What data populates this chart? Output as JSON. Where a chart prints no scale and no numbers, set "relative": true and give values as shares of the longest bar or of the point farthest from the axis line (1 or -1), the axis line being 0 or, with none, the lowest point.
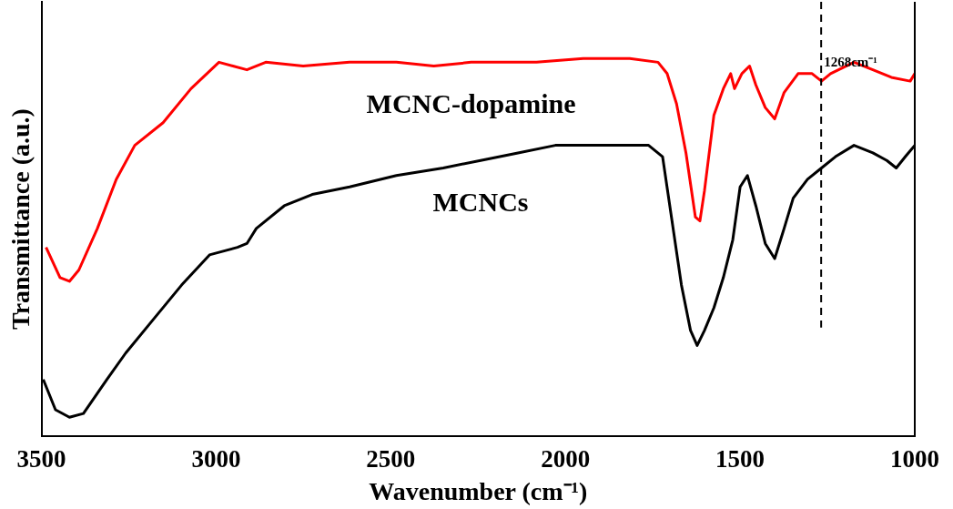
{
  "chart_data": {
    "type": "line",
    "xlabel": "Wavenumber (cm⁻¹)",
    "ylabel": "Transmittance (a.u.)",
    "relative": true,
    "xlim": [
      3500,
      1000
    ],
    "xticks": [
      3500,
      3000,
      2500,
      2000,
      1500,
      1000
    ],
    "legend": false,
    "grid": false,
    "marker": "none",
    "line_style": "solid",
    "ref_lines": [
      {
        "axis": "x",
        "value": 1268,
        "label": "1268cm⁻¹",
        "line_style": "dashed",
        "color": "#000000"
      }
    ],
    "series": [
      {
        "name": "MCNC-dopamine",
        "color": "#ff0000",
        "x": [
          3487,
          3447,
          3420,
          3393,
          3340,
          3286,
          3233,
          3152,
          3072,
          2992,
          2952,
          2912,
          2858,
          2751,
          2618,
          2484,
          2377,
          2270,
          2083,
          1949,
          1816,
          1735,
          1709,
          1682,
          1655,
          1628,
          1615,
          1602,
          1575,
          1548,
          1527,
          1516,
          1495,
          1473,
          1455,
          1428,
          1401,
          1374,
          1334,
          1294,
          1267,
          1241,
          1174,
          1120,
          1067,
          1013,
          1000
        ],
        "values": [
          0.5,
          0.42,
          0.41,
          0.44,
          0.55,
          0.68,
          0.77,
          0.83,
          0.92,
          0.99,
          0.98,
          0.97,
          0.99,
          0.98,
          0.99,
          0.99,
          0.98,
          0.99,
          0.99,
          1.0,
          1.0,
          0.99,
          0.96,
          0.88,
          0.75,
          0.58,
          0.57,
          0.65,
          0.85,
          0.92,
          0.96,
          0.92,
          0.96,
          0.98,
          0.93,
          0.87,
          0.84,
          0.91,
          0.96,
          0.96,
          0.94,
          0.96,
          0.99,
          0.97,
          0.95,
          0.94,
          0.96
        ]
      },
      {
        "name": "MCNCs",
        "color": "#000000",
        "x": [
          3495,
          3460,
          3420,
          3380,
          3313,
          3259,
          3179,
          3099,
          3019,
          2939,
          2912,
          2885,
          2805,
          2725,
          2618,
          2484,
          2350,
          2243,
          2136,
          2029,
          1869,
          1762,
          1722,
          1695,
          1668,
          1642,
          1623,
          1602,
          1575,
          1548,
          1521,
          1500,
          1479,
          1455,
          1428,
          1401,
          1374,
          1348,
          1307,
          1267,
          1227,
          1174,
          1120,
          1080,
          1053,
          1027,
          1000
        ],
        "values": [
          0.15,
          0.07,
          0.05,
          0.06,
          0.15,
          0.22,
          0.31,
          0.4,
          0.48,
          0.5,
          0.51,
          0.55,
          0.61,
          0.64,
          0.66,
          0.69,
          0.71,
          0.73,
          0.75,
          0.77,
          0.77,
          0.77,
          0.74,
          0.57,
          0.4,
          0.28,
          0.24,
          0.28,
          0.34,
          0.42,
          0.52,
          0.66,
          0.69,
          0.61,
          0.51,
          0.47,
          0.55,
          0.63,
          0.68,
          0.71,
          0.74,
          0.77,
          0.75,
          0.73,
          0.71,
          0.74,
          0.77
        ]
      }
    ]
  }
}
